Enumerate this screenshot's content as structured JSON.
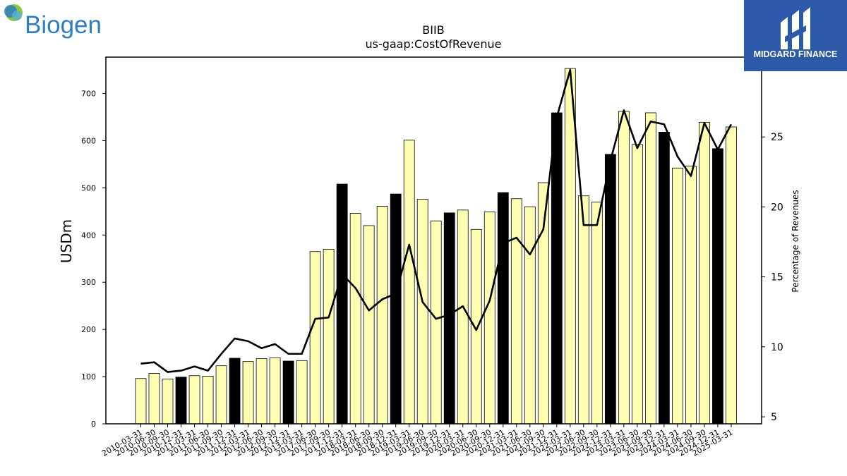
{
  "logos": {
    "left": {
      "text": "Biogen",
      "color": "#2f7dc1",
      "icon": "globe-icon"
    },
    "right": {
      "text": "MIDGARD FINANCE",
      "background": "#2d5aa8",
      "icon": "midgard-m-icon"
    }
  },
  "chart_data": {
    "type": "bar",
    "title": "BIIB",
    "subtitle": "us-gaap:CostOfRevenue",
    "ylabel": "USDm",
    "y2label": "Percentage of Revenues",
    "ylim": [
      0,
      777
    ],
    "y2lim": [
      4.5,
      30.7
    ],
    "yticks": [
      0,
      100,
      200,
      300,
      400,
      500,
      600,
      700
    ],
    "y2ticks": [
      5,
      10,
      15,
      20,
      25
    ],
    "grid": false,
    "legend": "none",
    "colors": {
      "quarter_bar": "#ffffb3",
      "year_end_bar": "#000000",
      "bar_edge": "#000000",
      "line": "#000000"
    },
    "categories": [
      "2010-03-31",
      "2010-06-30",
      "2010-09-30",
      "2010-12-31",
      "2011-03-31",
      "2011-06-30",
      "2011-09-30",
      "2011-12-31",
      "2012-03-31",
      "2012-06-30",
      "2012-09-30",
      "2012-12-31",
      "2013-03-31",
      "2017-06-30",
      "2017-09-30",
      "2017-12-31",
      "2018-03-31",
      "2018-06-30",
      "2018-09-30",
      "2018-12-31",
      "2019-03-31",
      "2019-06-30",
      "2019-09-30",
      "2019-12-31",
      "2020-03-31",
      "2020-06-30",
      "2020-09-30",
      "2020-12-31",
      "2021-03-31",
      "2021-06-30",
      "2021-09-30",
      "2021-12-31",
      "2022-03-31",
      "2022-06-30",
      "2022-09-30",
      "2022-12-31",
      "2023-03-31",
      "2023-06-30",
      "2023-09-30",
      "2023-12-31",
      "2024-03-31",
      "2024-06-30",
      "2024-09-30",
      "2024-12-31",
      "2025-03-31"
    ],
    "series": [
      {
        "type": "bar",
        "values": [
          96,
          107,
          95,
          99,
          102,
          101,
          123,
          139,
          132,
          138,
          140,
          133,
          134,
          365,
          370,
          508,
          446,
          420,
          461,
          487,
          601,
          476,
          430,
          447,
          453,
          412,
          449,
          490,
          477,
          460,
          511,
          659,
          753,
          483,
          470,
          571,
          662,
          592,
          659,
          618,
          542,
          546,
          639,
          583,
          629
        ]
      },
      {
        "type": "line",
        "axis": "right",
        "values": [
          8.8,
          8.9,
          8.2,
          8.3,
          8.6,
          8.3,
          9.5,
          10.6,
          10.4,
          9.9,
          10.2,
          9.5,
          9.5,
          12.0,
          12.1,
          15.2,
          14.2,
          12.6,
          13.4,
          13.8,
          17.3,
          13.2,
          12.0,
          12.3,
          12.9,
          11.2,
          13.3,
          17.4,
          17.8,
          16.6,
          18.4,
          26.4,
          29.8,
          18.7,
          18.7,
          23.3,
          26.9,
          24.2,
          26.1,
          25.9,
          23.6,
          22.2,
          26.0,
          24.1,
          25.9
        ]
      }
    ]
  }
}
